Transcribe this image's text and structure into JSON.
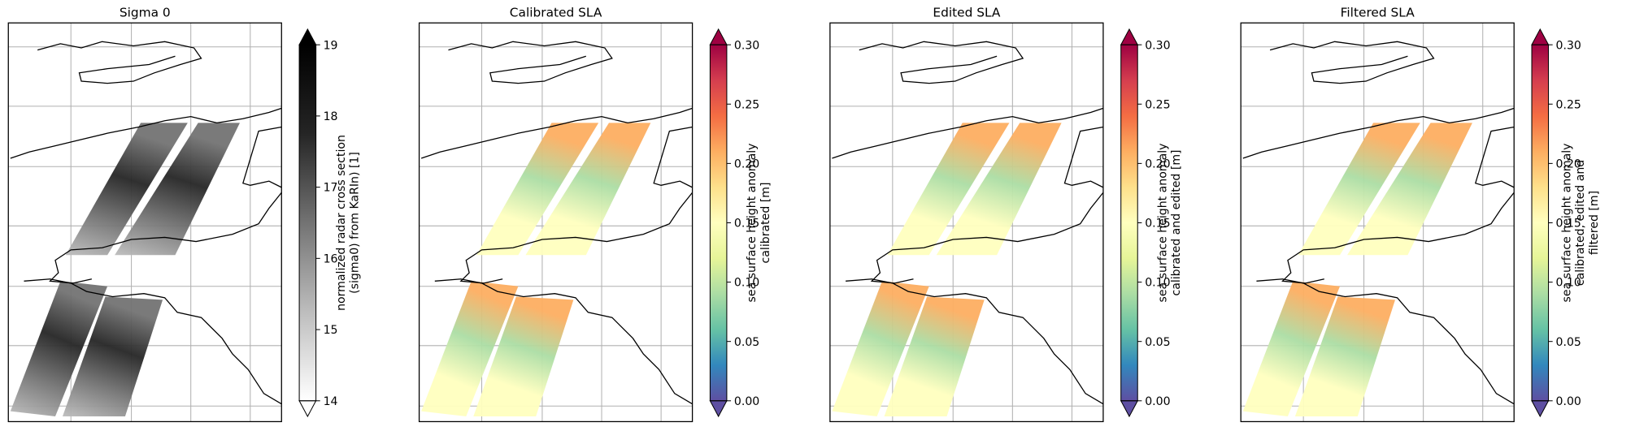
{
  "chart_data": [
    {
      "type": "map",
      "title": "Sigma 0",
      "colorbar": {
        "label": [
          "normalized radar cross section",
          "(sigma0) from KaRIn) [1]"
        ],
        "lim": [
          14,
          19
        ],
        "ticks": [
          14,
          15,
          16,
          17,
          18,
          19
        ],
        "colors": [
          "#ffffff",
          "#bdbdbd",
          "#737373",
          "#252525",
          "#000000"
        ]
      }
    },
    {
      "type": "map",
      "title": "Calibrated SLA",
      "colorbar": {
        "label": [
          "sea surface height anomaly",
          "calibrated [m]"
        ],
        "lim": [
          0,
          0.3
        ],
        "ticks": [
          {
            "value": 0,
            "label": "0.00"
          },
          {
            "value": 0.05,
            "label": "0.05"
          },
          {
            "value": 0.1,
            "label": "0.10"
          },
          {
            "value": 0.15,
            "label": "0.15"
          },
          {
            "value": 0.2,
            "label": "0.20"
          },
          {
            "value": 0.25,
            "label": "0.25"
          },
          {
            "value": 0.3,
            "label": "0.30"
          }
        ],
        "colors": [
          "#5e4fa2",
          "#3288bd",
          "#66c2a5",
          "#abdda4",
          "#e6f598",
          "#ffffbf",
          "#fee08b",
          "#fdae61",
          "#f46d43",
          "#d53e4f",
          "#9e0142"
        ]
      }
    },
    {
      "type": "map",
      "title": "Edited SLA",
      "colorbar": {
        "label": [
          "sea surface height anomaly",
          "calibrated and edited [m]"
        ],
        "lim": [
          0,
          0.3
        ],
        "ticks": [
          {
            "value": 0,
            "label": "0.00"
          },
          {
            "value": 0.05,
            "label": "0.05"
          },
          {
            "value": 0.1,
            "label": "0.10"
          },
          {
            "value": 0.15,
            "label": "0.15"
          },
          {
            "value": 0.2,
            "label": "0.20"
          },
          {
            "value": 0.25,
            "label": "0.25"
          },
          {
            "value": 0.3,
            "label": "0.30"
          }
        ],
        "colors": [
          "#5e4fa2",
          "#3288bd",
          "#66c2a5",
          "#abdda4",
          "#e6f598",
          "#ffffbf",
          "#fee08b",
          "#fdae61",
          "#f46d43",
          "#d53e4f",
          "#9e0142"
        ]
      }
    },
    {
      "type": "map",
      "title": "Filtered SLA",
      "colorbar": {
        "label": [
          "sea surface height anomaly",
          "calibrated, edited and",
          "filtered [m]"
        ],
        "lim": [
          0,
          0.3
        ],
        "ticks": [
          {
            "value": 0,
            "label": "0.00"
          },
          {
            "value": 0.05,
            "label": "0.05"
          },
          {
            "value": 0.1,
            "label": "0.10"
          },
          {
            "value": 0.15,
            "label": "0.15"
          },
          {
            "value": 0.2,
            "label": "0.20"
          },
          {
            "value": 0.25,
            "label": "0.25"
          },
          {
            "value": 0.3,
            "label": "0.30"
          }
        ],
        "colors": [
          "#5e4fa2",
          "#3288bd",
          "#66c2a5",
          "#abdda4",
          "#e6f598",
          "#ffffbf",
          "#fee08b",
          "#fdae61",
          "#f46d43",
          "#d53e4f",
          "#9e0142"
        ]
      }
    }
  ]
}
